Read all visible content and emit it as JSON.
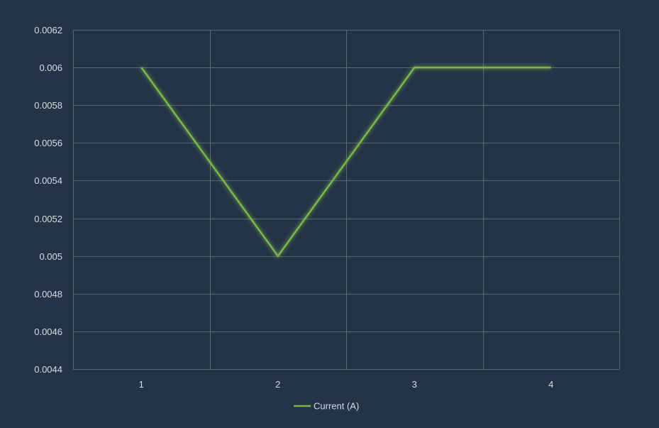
{
  "chart_data": {
    "type": "line",
    "categories": [
      "1",
      "2",
      "3",
      "4"
    ],
    "series": [
      {
        "name": "Current (A)",
        "values": [
          0.006,
          0.005,
          0.006,
          0.006
        ],
        "color": "#7ab648"
      }
    ],
    "ylim": [
      0.0044,
      0.0062
    ],
    "yticks": [
      "0.0062",
      "0.006",
      "0.0058",
      "0.0056",
      "0.0054",
      "0.0052",
      "0.005",
      "0.0048",
      "0.0046",
      "0.0044"
    ],
    "grid": true,
    "legend_position": "bottom"
  },
  "colors": {
    "background": "#243447",
    "gridline": "#5a6777",
    "text": "#d9dde3",
    "series": "#7ab648"
  }
}
